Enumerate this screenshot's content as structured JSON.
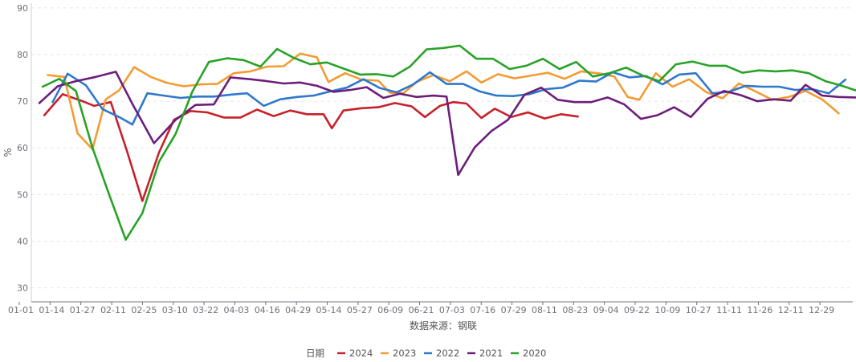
{
  "chart_data": {
    "type": "line",
    "title": "",
    "ylabel": "%",
    "xlabel": "数据来源：钢联",
    "ylim": [
      27,
      91
    ],
    "yticks": [
      30,
      40,
      50,
      60,
      70,
      80,
      90
    ],
    "grid": true,
    "legend_title": "日期",
    "legend_position": "bottom-center",
    "x_tick_labels": [
      "01-01",
      "01-14",
      "01-27",
      "02-11",
      "02-25",
      "03-10",
      "03-22",
      "04-03",
      "04-16",
      "04-29",
      "05-14",
      "05-27",
      "06-09",
      "06-21",
      "07-03",
      "07-16",
      "07-29",
      "08-11",
      "08-23",
      "09-04",
      "09-22",
      "10-09",
      "10-27",
      "11-11",
      "11-26",
      "12-11",
      "12-29"
    ],
    "x_day_range": [
      1,
      364
    ],
    "series": [
      {
        "name": "2024",
        "color": "#c8202a",
        "points": [
          [
            4,
            67
          ],
          [
            15,
            71.5
          ],
          [
            27,
            70
          ],
          [
            34,
            69
          ],
          [
            44,
            69.8
          ],
          [
            54,
            59
          ],
          [
            63,
            48.6
          ],
          [
            73,
            59
          ],
          [
            82,
            66
          ],
          [
            92,
            67.9
          ],
          [
            102,
            67.6
          ],
          [
            112,
            66.5
          ],
          [
            122,
            66.5
          ],
          [
            132,
            68.2
          ],
          [
            142,
            66.8
          ],
          [
            152,
            68
          ],
          [
            162,
            67.2
          ],
          [
            172,
            67.2
          ],
          [
            177,
            64.2
          ],
          [
            184,
            68
          ],
          [
            195,
            68.5
          ],
          [
            205,
            68.7
          ],
          [
            215,
            69.6
          ],
          [
            225,
            68.9
          ],
          [
            233,
            66.6
          ],
          [
            242,
            69
          ],
          [
            250,
            69.8
          ],
          [
            258,
            69.5
          ],
          [
            267,
            66.4
          ],
          [
            275,
            68.4
          ],
          [
            285,
            66.6
          ],
          [
            295,
            67.6
          ],
          [
            305,
            66.3
          ],
          [
            315,
            67.2
          ],
          [
            325,
            66.7
          ]
        ]
      },
      {
        "name": "2023",
        "color": "#f39c33",
        "points": [
          [
            6,
            75.6
          ],
          [
            16,
            75.2
          ],
          [
            24,
            63.1
          ],
          [
            33,
            59.7
          ],
          [
            41,
            70.4
          ],
          [
            49,
            72.3
          ],
          [
            58,
            77.3
          ],
          [
            68,
            75.2
          ],
          [
            78,
            73.9
          ],
          [
            88,
            73.2
          ],
          [
            98,
            73.6
          ],
          [
            108,
            73.7
          ],
          [
            118,
            76
          ],
          [
            128,
            76.4
          ],
          [
            138,
            77.4
          ],
          [
            148,
            77.5
          ],
          [
            158,
            80.2
          ],
          [
            168,
            79.4
          ],
          [
            175,
            74.1
          ],
          [
            185,
            76
          ],
          [
            195,
            74.6
          ],
          [
            205,
            74.4
          ],
          [
            212,
            71.8
          ],
          [
            220,
            71.7
          ],
          [
            228,
            74.1
          ],
          [
            238,
            75.6
          ],
          [
            248,
            74.3
          ],
          [
            258,
            76.4
          ],
          [
            267,
            74
          ],
          [
            277,
            75.8
          ],
          [
            287,
            74.9
          ],
          [
            297,
            75.5
          ],
          [
            307,
            76.1
          ],
          [
            317,
            74.8
          ],
          [
            327,
            76.4
          ],
          [
            337,
            76
          ],
          [
            347,
            75.3
          ],
          [
            355,
            70.9
          ],
          [
            362,
            70.3
          ],
          [
            372,
            76
          ],
          [
            382,
            73.1
          ],
          [
            392,
            74.7
          ],
          [
            402,
            72
          ],
          [
            412,
            70.6
          ],
          [
            422,
            73.8
          ],
          [
            432,
            72.1
          ],
          [
            442,
            70.3
          ],
          [
            452,
            70.9
          ],
          [
            462,
            72.2
          ],
          [
            472,
            70.4
          ],
          [
            482,
            67.4
          ]
        ]
      },
      {
        "name": "2022",
        "color": "#2f78cc",
        "points": [
          [
            9,
            69.8
          ],
          [
            18,
            75.9
          ],
          [
            29,
            73.4
          ],
          [
            39,
            68.3
          ],
          [
            49,
            66.6
          ],
          [
            57,
            65
          ],
          [
            66,
            71.7
          ],
          [
            76,
            71.2
          ],
          [
            86,
            70.7
          ],
          [
            96,
            71
          ],
          [
            106,
            71
          ],
          [
            116,
            71.4
          ],
          [
            126,
            71.7
          ],
          [
            136,
            69
          ],
          [
            146,
            70.4
          ],
          [
            156,
            70.9
          ],
          [
            166,
            71.2
          ],
          [
            176,
            72.1
          ],
          [
            186,
            72.9
          ],
          [
            196,
            74.7
          ],
          [
            206,
            72.8
          ],
          [
            216,
            71.9
          ],
          [
            226,
            73.6
          ],
          [
            236,
            76.2
          ],
          [
            246,
            73.7
          ],
          [
            256,
            73.7
          ],
          [
            266,
            72.1
          ],
          [
            276,
            71.2
          ],
          [
            286,
            71.1
          ],
          [
            296,
            71.5
          ],
          [
            306,
            72.6
          ],
          [
            316,
            72.9
          ],
          [
            326,
            74.4
          ],
          [
            336,
            74.2
          ],
          [
            346,
            76.2
          ],
          [
            356,
            75.1
          ],
          [
            366,
            75.4
          ],
          [
            376,
            73.6
          ],
          [
            386,
            75.7
          ],
          [
            396,
            76
          ],
          [
            406,
            71.7
          ],
          [
            416,
            72
          ],
          [
            426,
            73.3
          ],
          [
            436,
            73.1
          ],
          [
            446,
            73.1
          ],
          [
            456,
            72.4
          ],
          [
            466,
            72.6
          ],
          [
            476,
            71.7
          ],
          [
            486,
            74.6
          ]
        ]
      },
      {
        "name": "2021",
        "color": "#6d1e7a",
        "points": [
          [
            1,
            69.6
          ],
          [
            12,
            73.2
          ],
          [
            23,
            74.3
          ],
          [
            35,
            75.2
          ],
          [
            47,
            76.3
          ],
          [
            57,
            69.4
          ],
          [
            70,
            61
          ],
          [
            83,
            66
          ],
          [
            95,
            69.2
          ],
          [
            106,
            69.3
          ],
          [
            116,
            75.1
          ],
          [
            128,
            74.7
          ],
          [
            138,
            74.3
          ],
          [
            148,
            73.8
          ],
          [
            158,
            74
          ],
          [
            168,
            73.3
          ],
          [
            178,
            72
          ],
          [
            188,
            72.4
          ],
          [
            198,
            73
          ],
          [
            208,
            70.7
          ],
          [
            218,
            71.6
          ],
          [
            228,
            70.9
          ],
          [
            238,
            71.2
          ],
          [
            246,
            71
          ],
          [
            253,
            54.2
          ],
          [
            263,
            60.1
          ],
          [
            273,
            63.6
          ],
          [
            283,
            66
          ],
          [
            293,
            71.4
          ],
          [
            303,
            72.9
          ],
          [
            313,
            70.3
          ],
          [
            323,
            69.8
          ],
          [
            333,
            69.8
          ],
          [
            343,
            70.8
          ],
          [
            353,
            69.3
          ],
          [
            363,
            66.2
          ],
          [
            373,
            67
          ],
          [
            383,
            68.7
          ],
          [
            393,
            66.6
          ],
          [
            403,
            70.5
          ],
          [
            413,
            72.2
          ],
          [
            423,
            71.3
          ],
          [
            433,
            70
          ],
          [
            443,
            70.4
          ],
          [
            453,
            70.1
          ],
          [
            462,
            73.5
          ],
          [
            472,
            71.2
          ],
          [
            482,
            70.9
          ],
          [
            492,
            70.8
          ]
        ]
      },
      {
        "name": "2020",
        "color": "#28a228",
        "points": [
          [
            3,
            73.1
          ],
          [
            13,
            74.8
          ],
          [
            23,
            72.2
          ],
          [
            33,
            60
          ],
          [
            43,
            50
          ],
          [
            53,
            40.3
          ],
          [
            63,
            46
          ],
          [
            73,
            57
          ],
          [
            83,
            63
          ],
          [
            93,
            72
          ],
          [
            103,
            78.4
          ],
          [
            114,
            79.2
          ],
          [
            124,
            78.8
          ],
          [
            134,
            77.4
          ],
          [
            144,
            81.2
          ],
          [
            154,
            79.3
          ],
          [
            164,
            77.9
          ],
          [
            174,
            78.3
          ],
          [
            184,
            77
          ],
          [
            194,
            75.7
          ],
          [
            204,
            75.8
          ],
          [
            214,
            75.3
          ],
          [
            224,
            77.4
          ],
          [
            234,
            81.1
          ],
          [
            244,
            81.4
          ],
          [
            254,
            81.9
          ],
          [
            264,
            79.1
          ],
          [
            274,
            79.1
          ],
          [
            284,
            76.9
          ],
          [
            294,
            77.6
          ],
          [
            304,
            79.1
          ],
          [
            314,
            76.9
          ],
          [
            324,
            78.4
          ],
          [
            334,
            75.3
          ],
          [
            344,
            76
          ],
          [
            354,
            77.2
          ],
          [
            364,
            75.5
          ],
          [
            374,
            74.3
          ],
          [
            384,
            77.9
          ],
          [
            394,
            78.5
          ],
          [
            404,
            77.6
          ],
          [
            414,
            77.6
          ],
          [
            424,
            76.1
          ],
          [
            434,
            76.6
          ],
          [
            444,
            76.4
          ],
          [
            454,
            76.6
          ],
          [
            464,
            76
          ],
          [
            474,
            74.3
          ],
          [
            484,
            73.3
          ],
          [
            494,
            72.1
          ]
        ]
      }
    ]
  }
}
